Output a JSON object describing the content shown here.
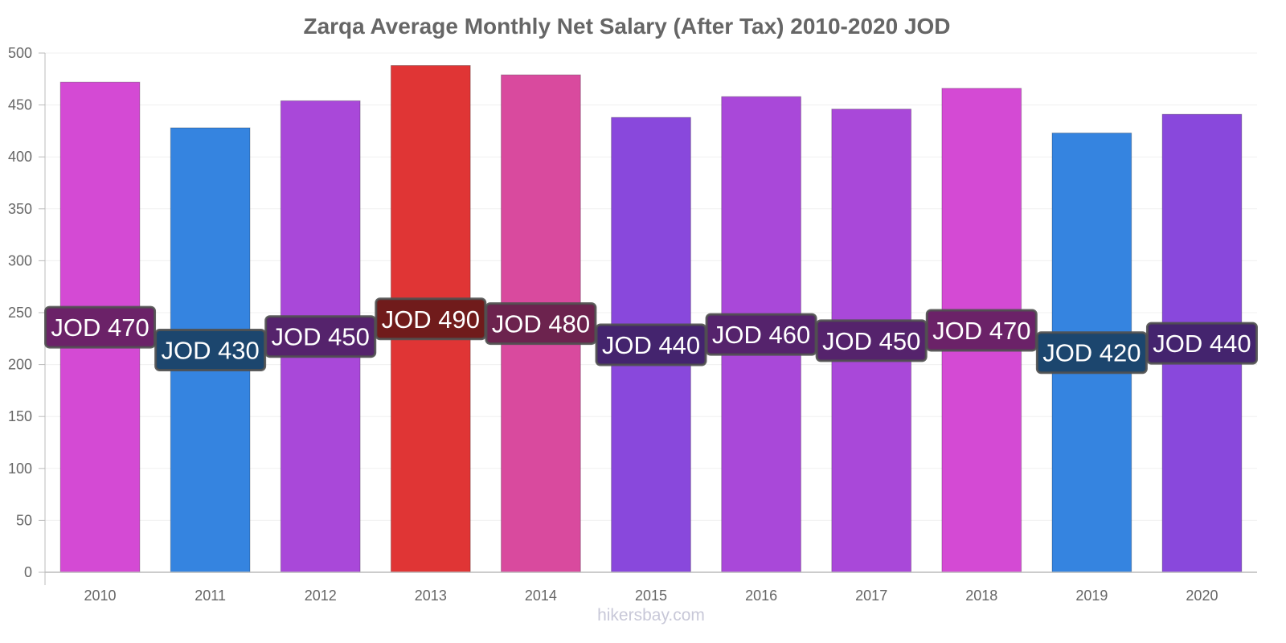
{
  "chart_data": {
    "type": "bar",
    "title": "Zarqa Average Monthly Net Salary (After Tax) 2010-2020 JOD",
    "xlabel": "",
    "ylabel": "",
    "ylim": [
      0,
      500
    ],
    "y_ticks": [
      0,
      50,
      100,
      150,
      200,
      250,
      300,
      350,
      400,
      450,
      500
    ],
    "categories": [
      "2010",
      "2011",
      "2012",
      "2013",
      "2014",
      "2015",
      "2016",
      "2017",
      "2018",
      "2019",
      "2020"
    ],
    "values": [
      472,
      428,
      454,
      488,
      479,
      438,
      458,
      446,
      466,
      423,
      441
    ],
    "data_labels": [
      "JOD 470",
      "JOD 430",
      "JOD 450",
      "JOD 490",
      "JOD 480",
      "JOD 440",
      "JOD 460",
      "JOD 450",
      "JOD 470",
      "JOD 420",
      "JOD 440"
    ],
    "bar_colors": [
      "#d44ad4",
      "#3584e0",
      "#a948d9",
      "#e03535",
      "#d94a9e",
      "#8948dc",
      "#a948d9",
      "#a948d9",
      "#d44ad4",
      "#3584e0",
      "#8948dc"
    ],
    "label_colors": [
      "#6b2268",
      "#1c466e",
      "#55236c",
      "#701b1b",
      "#6c234e",
      "#44246e",
      "#55236c",
      "#55236c",
      "#6b2268",
      "#1c466e",
      "#44246e"
    ],
    "grid": true
  },
  "watermark": "hikersbay.com"
}
